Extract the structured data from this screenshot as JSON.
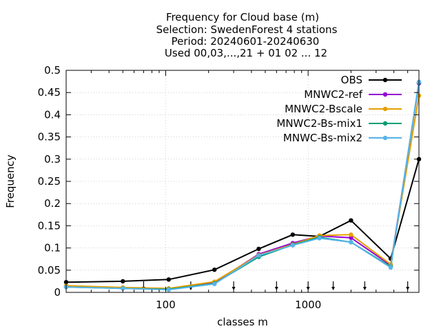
{
  "chart_data": {
    "type": "line",
    "title_lines": [
      "Frequency  for Cloud base (m)",
      "Selection: SwedenForest      4 stations",
      "Period: 20240601-20240630",
      "Used 00,03,...,21 + 01 02 ... 12"
    ],
    "xlabel": "classes m",
    "ylabel": "Frequency",
    "x_scale": "log",
    "xlim": [
      20,
      6000
    ],
    "ylim": [
      0,
      0.5
    ],
    "x_ticks": [
      100,
      1000
    ],
    "x_tick_labels": [
      "100",
      "1000"
    ],
    "y_ticks": [
      0,
      0.05,
      0.1,
      0.15,
      0.2,
      0.25,
      0.3,
      0.35,
      0.4,
      0.45,
      0.5
    ],
    "y_tick_labels": [
      "0",
      "0.05",
      "0.1",
      "0.15",
      "0.2",
      "0.25",
      "0.3",
      "0.35",
      "0.4",
      "0.45",
      "0.5"
    ],
    "grid": true,
    "legend_position": "top-right",
    "class_markers": [
      70,
      150,
      300,
      600,
      1000,
      1500,
      2500,
      5000
    ],
    "x": [
      20,
      50,
      105,
      220,
      450,
      780,
      1200,
      2000,
      3800,
      6000
    ],
    "series": [
      {
        "name": "OBS",
        "color": "#000000",
        "values": [
          0.023,
          0.025,
          0.029,
          0.051,
          0.098,
          0.13,
          0.126,
          0.162,
          0.076,
          0.3
        ]
      },
      {
        "name": "MNWC2-ref",
        "color": "#9400d3",
        "values": [
          0.013,
          0.01,
          0.008,
          0.022,
          0.086,
          0.111,
          0.127,
          0.123,
          0.061,
          0.471
        ]
      },
      {
        "name": "MNWC2-Bscale",
        "color": "#e69f00",
        "values": [
          0.015,
          0.011,
          0.009,
          0.024,
          0.084,
          0.108,
          0.128,
          0.13,
          0.063,
          0.443
        ]
      },
      {
        "name": "MNWC2-Bs-mix1",
        "color": "#009e73",
        "values": [
          0.012,
          0.009,
          0.007,
          0.02,
          0.08,
          0.107,
          0.124,
          0.113,
          0.058,
          0.473
        ]
      },
      {
        "name": "MNWC-Bs-mix2",
        "color": "#56b4e9",
        "values": [
          0.012,
          0.009,
          0.006,
          0.019,
          0.083,
          0.106,
          0.122,
          0.113,
          0.056,
          0.474
        ]
      }
    ]
  }
}
